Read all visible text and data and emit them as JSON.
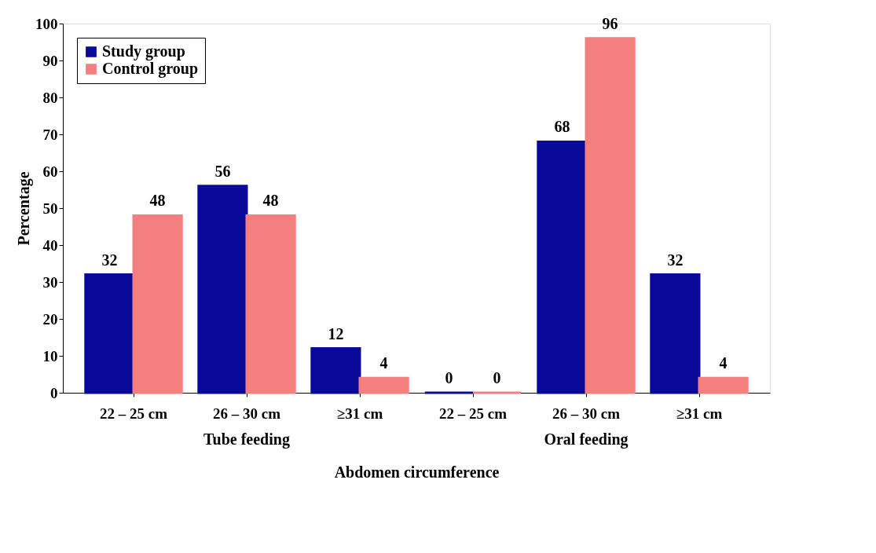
{
  "chart_data": {
    "type": "bar",
    "xlabel": "Abdomen circumference",
    "ylabel": "Percentage",
    "categories": [
      "22 – 25 cm",
      "26 – 30 cm",
      "≥31 cm",
      "22 – 25 cm",
      "26 – 30 cm",
      "≥31 cm"
    ],
    "series": [
      {
        "name": "Study group",
        "color": "#0a0a9a",
        "values": [
          32,
          56,
          12,
          0,
          68,
          32
        ]
      },
      {
        "name": "Control group",
        "color": "#f47f7f",
        "values": [
          48,
          48,
          4,
          0,
          96,
          4
        ]
      }
    ],
    "ylim": [
      0,
      100
    ],
    "yticks": [
      0,
      10,
      20,
      30,
      40,
      50,
      60,
      70,
      80,
      90,
      100
    ],
    "grid": false,
    "legend": "top left",
    "data_labels": true,
    "annotations": [
      "Tube feeding",
      "Oral feeding"
    ]
  }
}
